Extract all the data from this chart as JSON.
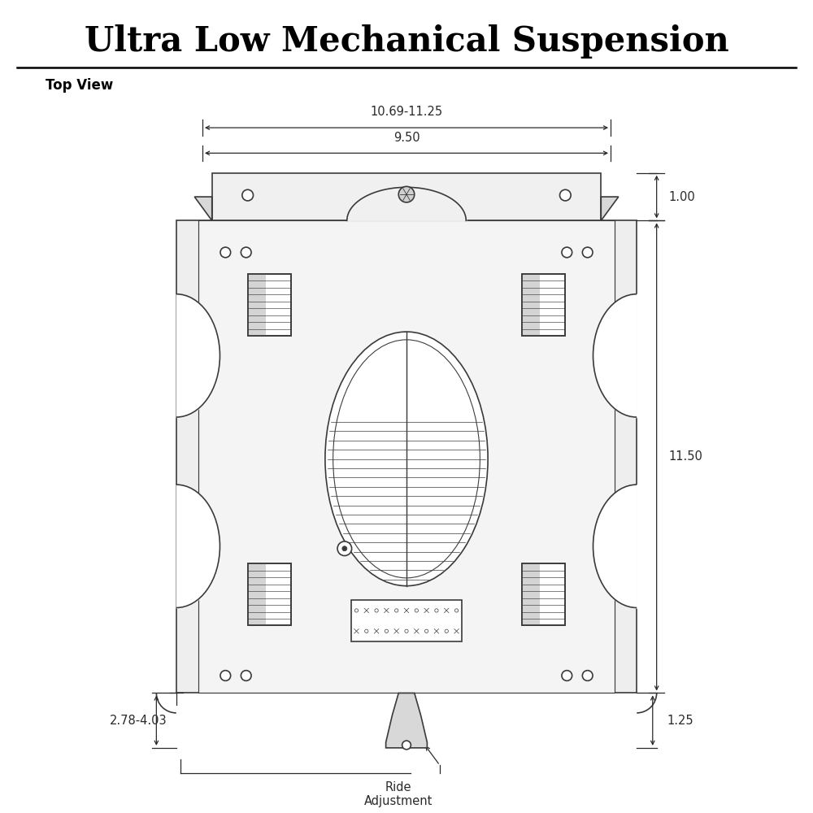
{
  "title": "Ultra Low Mechanical Suspension",
  "subtitle": "Top View",
  "bg_color": "#ffffff",
  "line_color": "#3a3a3a",
  "dim_color": "#2a2a2a",
  "dims": {
    "width_outer": "10.69-11.25",
    "width_inner": "9.50",
    "height_main": "11.50",
    "top_bracket": "1.00",
    "bottom_bracket": "1.25",
    "side_dim": "2.78-4.03",
    "ride_label": "Ride\nAdjustment"
  }
}
